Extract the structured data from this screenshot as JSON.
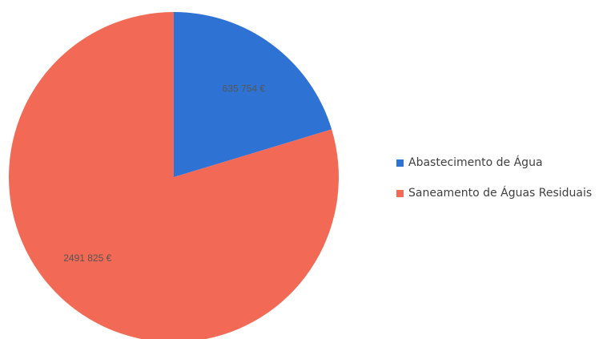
{
  "chart_data": {
    "type": "pie",
    "start_angle_deg": 0,
    "direction": "clockwise",
    "slices": [
      {
        "name": "Abastecimento de Água",
        "value": 635754,
        "label": "635 754 €",
        "color": "#2e73d4"
      },
      {
        "name": "Saneamento de Águas Residuais",
        "value": 2491825,
        "label": "2491 825 €",
        "color": "#f26a55"
      }
    ],
    "legend_position": "right"
  }
}
